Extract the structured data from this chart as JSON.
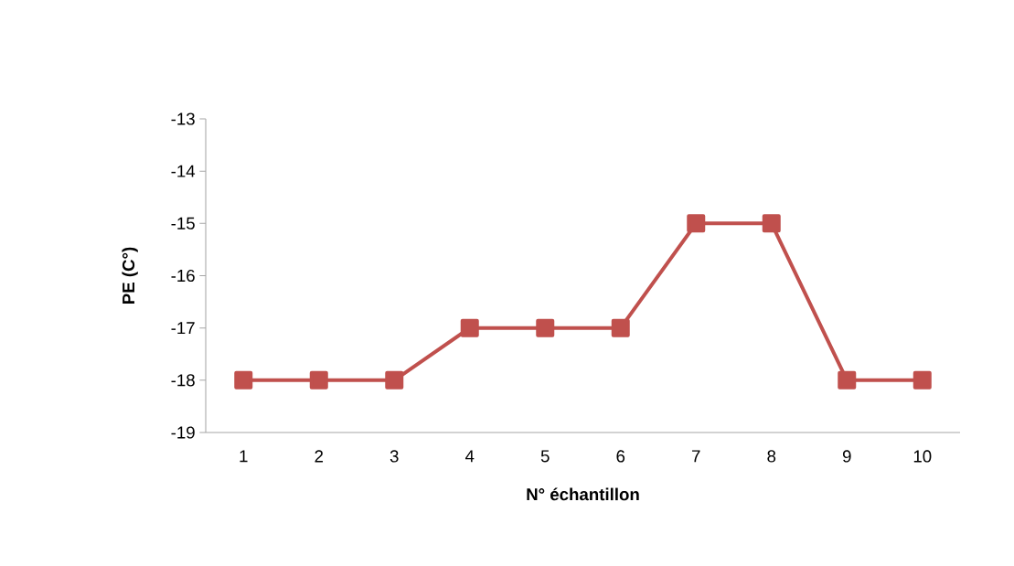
{
  "chart_data": {
    "type": "line",
    "xlabel": "N° échantillon",
    "ylabel": "PE (C°)",
    "categories": [
      "1",
      "2",
      "3",
      "4",
      "5",
      "6",
      "7",
      "8",
      "9",
      "10"
    ],
    "series": [
      {
        "color": "#c0504d",
        "values": [
          -18,
          -18,
          -18,
          -17,
          -17,
          -17,
          -15,
          -15,
          -18,
          -18
        ]
      }
    ],
    "ylim": [
      -19,
      -13
    ],
    "yticks": [
      -19,
      -18,
      -17,
      -16,
      -15,
      -14,
      -13
    ],
    "grid": false,
    "marker": "square",
    "line_style": "solid"
  }
}
